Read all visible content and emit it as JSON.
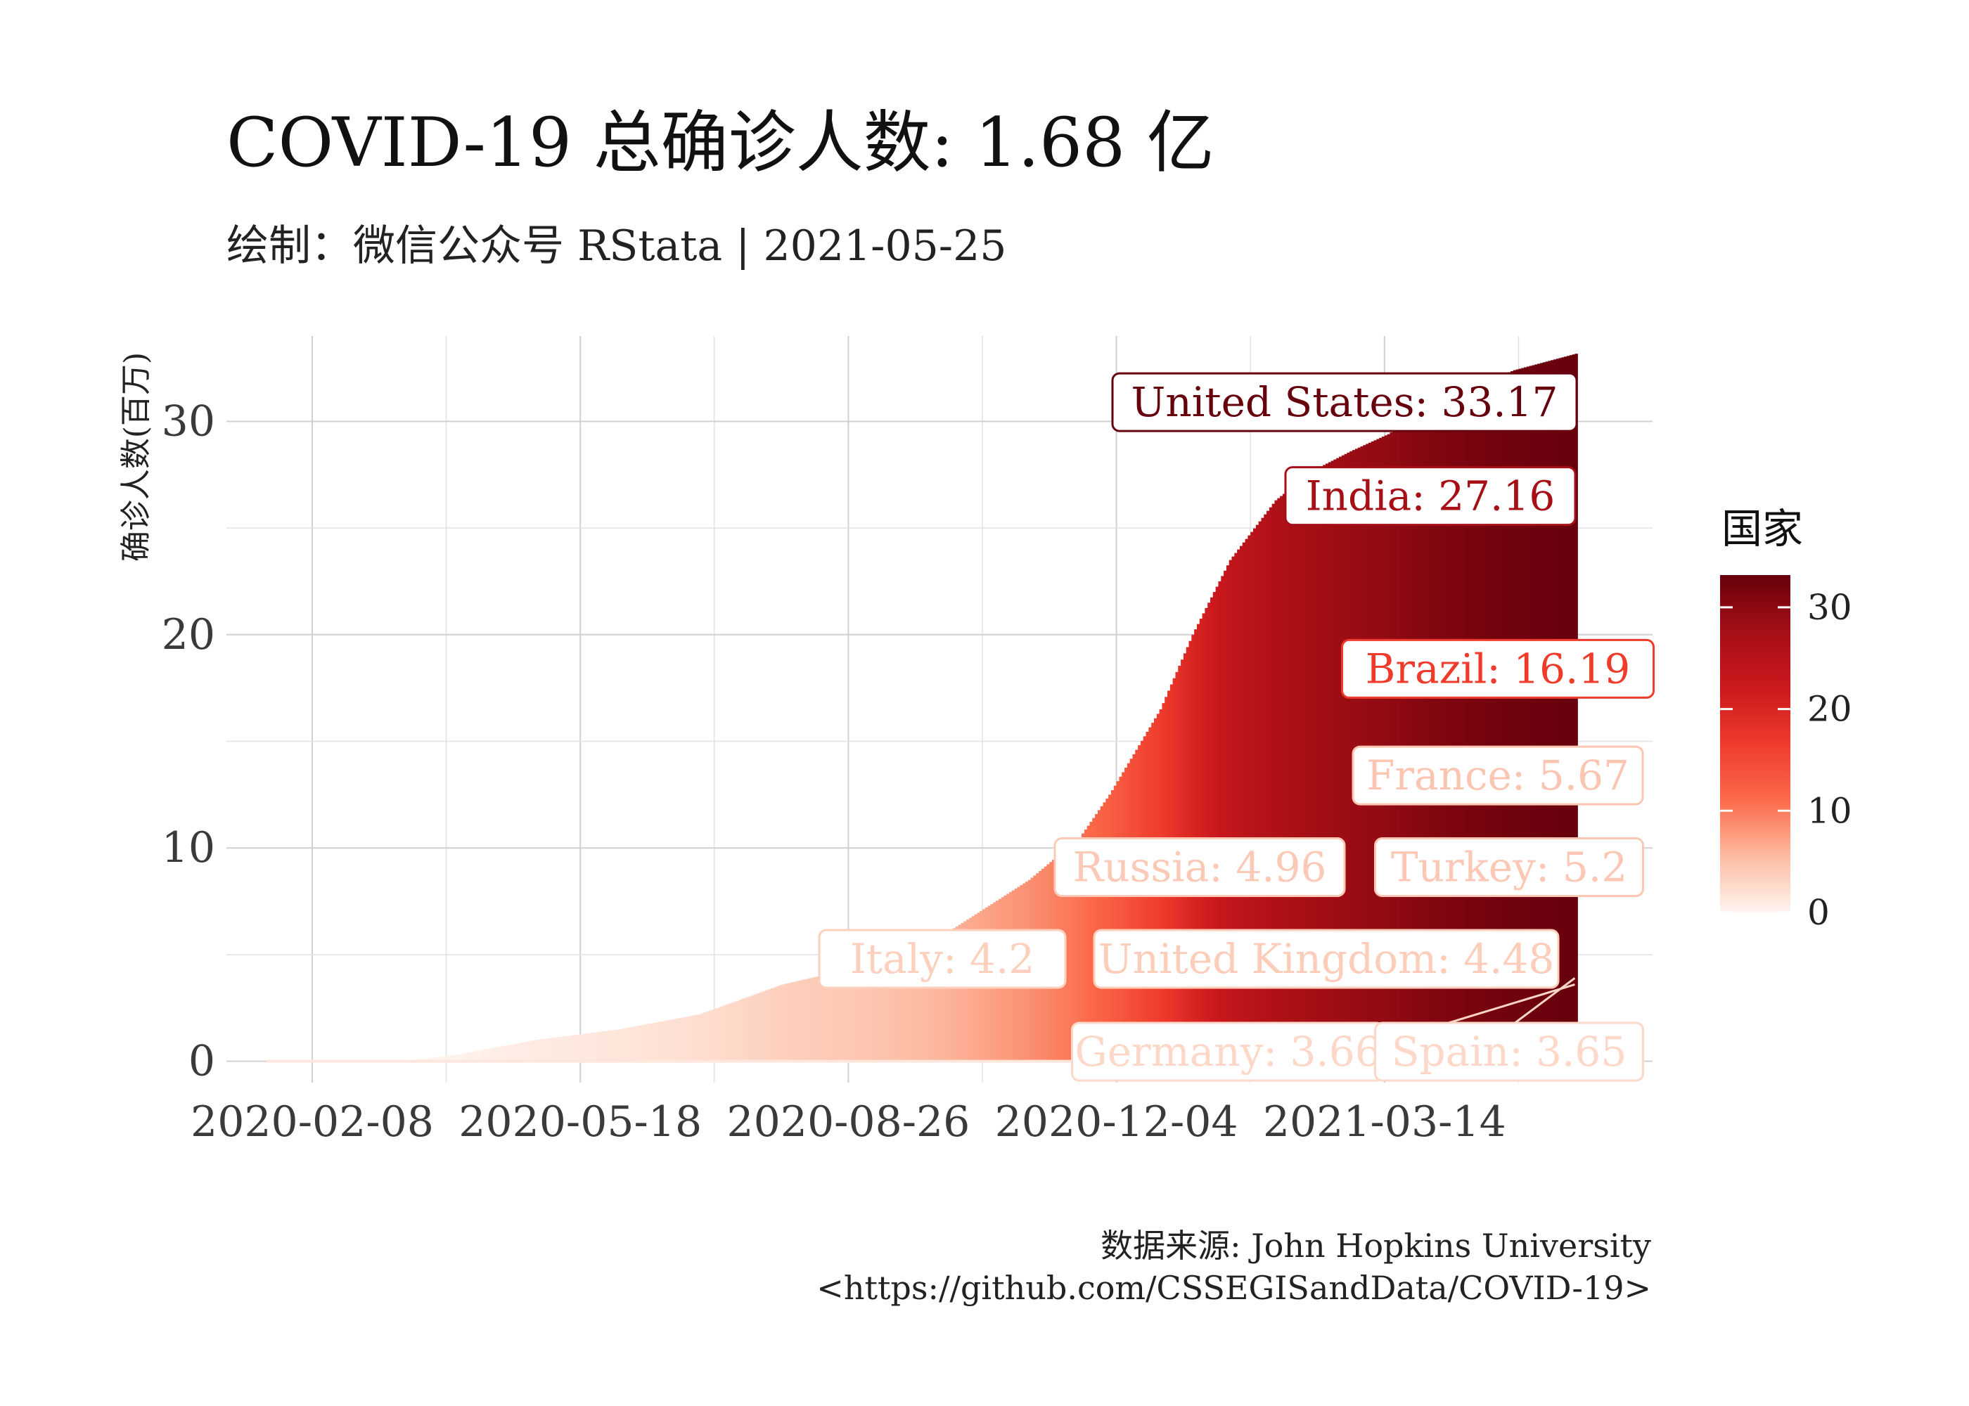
{
  "chart_data": {
    "type": "area",
    "title": "COVID-19 总确诊人数: 1.68 亿",
    "subtitle": "绘制：微信公众号 RStata | 2021-05-25",
    "ylabel": "确诊人数(百万)",
    "caption_lines": [
      "数据来源: John Hopkins University",
      "<https://github.com/CSSEGISandData/COVID-19>"
    ],
    "x_tick_labels": [
      "2020-02-08",
      "2020-05-18",
      "2020-08-26",
      "2020-12-04",
      "2021-03-14"
    ],
    "y_tick_labels": [
      "0",
      "10",
      "20",
      "30"
    ],
    "ylim": [
      -1,
      34
    ],
    "xlim": [
      "2020-01-07",
      "2021-06-22"
    ],
    "grid": true,
    "legend": {
      "title": "国家",
      "position": "right",
      "ticks": [
        "0",
        "10",
        "20",
        "30"
      ],
      "range": [
        0,
        33.17
      ]
    },
    "color_scale": [
      "#fff5f0",
      "#fcbba1",
      "#fb6a4a",
      "#ef3b2c",
      "#cb181d",
      "#a50f15",
      "#67000d"
    ],
    "series": [
      {
        "name": "United States",
        "label": "United States: 33.17",
        "final_value": 33.17,
        "points": [
          [
            "2020-01-22",
            0
          ],
          [
            "2020-03-01",
            0.0
          ],
          [
            "2020-03-15",
            0.05
          ],
          [
            "2020-04-01",
            0.3
          ],
          [
            "2020-05-01",
            1.0
          ],
          [
            "2020-06-01",
            1.5
          ],
          [
            "2020-07-01",
            2.2
          ],
          [
            "2020-08-01",
            3.6
          ],
          [
            "2020-09-01",
            4.5
          ],
          [
            "2020-10-01",
            6.0
          ],
          [
            "2020-11-01",
            8.5
          ],
          [
            "2020-11-20",
            10.5
          ],
          [
            "2020-12-01",
            12.5
          ],
          [
            "2020-12-20",
            16.5
          ],
          [
            "2021-01-01",
            20.0
          ],
          [
            "2021-01-15",
            23.5
          ],
          [
            "2021-02-01",
            26.3
          ],
          [
            "2021-02-15",
            27.7
          ],
          [
            "2021-03-01",
            28.6
          ],
          [
            "2021-03-15",
            29.4
          ],
          [
            "2021-04-01",
            30.8
          ],
          [
            "2021-04-15",
            31.6
          ],
          [
            "2021-05-01",
            32.4
          ],
          [
            "2021-05-24",
            33.17
          ]
        ]
      }
    ],
    "labels": [
      {
        "text": "United States: 33.17",
        "value": 33.17,
        "color": "#67000d"
      },
      {
        "text": "India: 27.16",
        "value": 27.16,
        "color": "#a50f15"
      },
      {
        "text": "Brazil: 16.19",
        "value": 16.19,
        "color": "#ef3b2c"
      },
      {
        "text": "France: 5.67",
        "value": 5.67,
        "color": "#fcc5b1"
      },
      {
        "text": "Russia: 4.96",
        "value": 4.96,
        "color": "#fcc9b6"
      },
      {
        "text": "Turkey: 5.2",
        "value": 5.2,
        "color": "#fcc7b4"
      },
      {
        "text": "Italy: 4.2",
        "value": 4.2,
        "color": "#fdd0be"
      },
      {
        "text": "United Kingdom: 4.48",
        "value": 4.48,
        "color": "#fdcdba"
      },
      {
        "text": "Germany: 3.66",
        "value": 3.66,
        "color": "#fdd8c8"
      },
      {
        "text": "Spain: 3.65",
        "value": 3.65,
        "color": "#fdd8c8"
      }
    ]
  }
}
